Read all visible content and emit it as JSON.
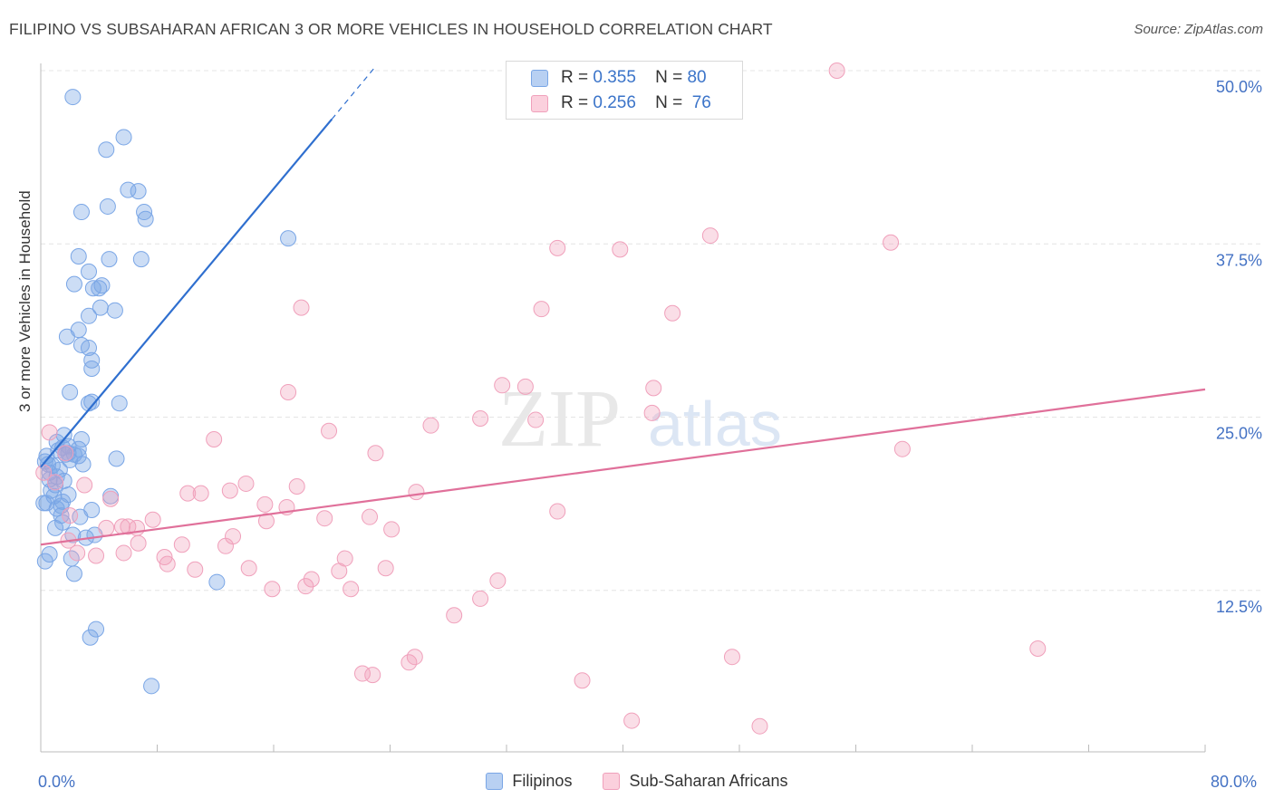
{
  "title": "FILIPINO VS SUBSAHARAN AFRICAN 3 OR MORE VEHICLES IN HOUSEHOLD CORRELATION CHART",
  "source": "Source: ZipAtlas.com",
  "watermark": {
    "zip": "ZIP",
    "atlas": "atlas"
  },
  "legend_box": {
    "rows": [
      {
        "r_label": "R =",
        "r_value": "0.355",
        "n_label": "N =",
        "n_value": "80"
      },
      {
        "r_label": "R =",
        "r_value": "0.256",
        "n_label": "N =",
        "n_value": "76"
      }
    ]
  },
  "chart_data": {
    "type": "scatter",
    "xlabel": "",
    "ylabel": "3 or more Vehicles in Household",
    "xlim": [
      0,
      80
    ],
    "ylim": [
      0,
      52
    ],
    "x_tick_labels": {
      "left": "0.0%",
      "right": "80.0%"
    },
    "y_ticks": [
      {
        "value": 12.5,
        "label": "12.5%"
      },
      {
        "value": 25.0,
        "label": "25.0%"
      },
      {
        "value": 37.5,
        "label": "37.5%"
      },
      {
        "value": 50.0,
        "label": "50.0%"
      }
    ],
    "grid": true,
    "legend_position": "bottom",
    "colors": {
      "filipinos": "#7aa6e6",
      "subsaharan": "#f0a0bb",
      "filipinos_line": "#2f6fcf",
      "subsaharan_line": "#e0709a"
    },
    "series": [
      {
        "name": "Filipinos",
        "r": 0.355,
        "n": 80,
        "trend": {
          "x0": 0.0,
          "y0": 21.4,
          "x1": 20.0,
          "y1": 46.5,
          "dash_to_x": 23.0,
          "dash_to_y": 50.3
        },
        "points": [
          [
            2.2,
            48.1
          ],
          [
            4.5,
            44.3
          ],
          [
            5.7,
            45.2
          ],
          [
            6.0,
            41.4
          ],
          [
            6.7,
            41.3
          ],
          [
            2.8,
            39.8
          ],
          [
            4.6,
            40.2
          ],
          [
            7.1,
            39.8
          ],
          [
            7.2,
            39.3
          ],
          [
            17.0,
            37.9
          ],
          [
            2.6,
            36.6
          ],
          [
            4.7,
            36.4
          ],
          [
            6.9,
            36.4
          ],
          [
            3.3,
            35.5
          ],
          [
            2.3,
            34.6
          ],
          [
            4.2,
            34.5
          ],
          [
            3.6,
            34.3
          ],
          [
            4.0,
            34.3
          ],
          [
            4.1,
            32.9
          ],
          [
            5.1,
            32.7
          ],
          [
            3.3,
            32.3
          ],
          [
            2.6,
            31.3
          ],
          [
            1.8,
            30.8
          ],
          [
            2.8,
            30.2
          ],
          [
            3.3,
            30.0
          ],
          [
            3.5,
            29.1
          ],
          [
            3.5,
            28.5
          ],
          [
            2.0,
            26.8
          ],
          [
            3.5,
            26.1
          ],
          [
            3.3,
            26.0
          ],
          [
            5.4,
            26.0
          ],
          [
            1.1,
            23.2
          ],
          [
            2.8,
            23.4
          ],
          [
            1.9,
            22.9
          ],
          [
            1.5,
            22.8
          ],
          [
            2.6,
            22.7
          ],
          [
            1.9,
            22.4
          ],
          [
            2.3,
            22.3
          ],
          [
            1.7,
            22.3
          ],
          [
            2.6,
            22.2
          ],
          [
            5.2,
            22.0
          ],
          [
            2.9,
            21.6
          ],
          [
            0.5,
            21.6
          ],
          [
            0.8,
            21.5
          ],
          [
            1.3,
            21.2
          ],
          [
            0.6,
            21.0
          ],
          [
            1.1,
            20.7
          ],
          [
            0.6,
            20.5
          ],
          [
            1.6,
            20.4
          ],
          [
            0.7,
            19.7
          ],
          [
            1.9,
            19.4
          ],
          [
            0.9,
            19.3
          ],
          [
            1.5,
            18.9
          ],
          [
            0.4,
            18.8
          ],
          [
            1.4,
            18.6
          ],
          [
            1.1,
            18.4
          ],
          [
            3.5,
            18.3
          ],
          [
            1.4,
            17.9
          ],
          [
            2.7,
            17.8
          ],
          [
            1.5,
            17.4
          ],
          [
            4.8,
            19.3
          ],
          [
            3.7,
            16.5
          ],
          [
            2.2,
            16.5
          ],
          [
            3.1,
            16.3
          ],
          [
            0.6,
            15.1
          ],
          [
            2.1,
            14.8
          ],
          [
            0.3,
            14.6
          ],
          [
            2.3,
            13.7
          ],
          [
            12.1,
            13.1
          ],
          [
            3.8,
            9.7
          ],
          [
            3.4,
            9.1
          ],
          [
            7.6,
            5.6
          ],
          [
            0.2,
            18.8
          ],
          [
            1.0,
            20.1
          ],
          [
            0.3,
            21.8
          ],
          [
            1.2,
            22.6
          ],
          [
            2.0,
            21.9
          ],
          [
            0.4,
            22.2
          ],
          [
            1.6,
            23.7
          ],
          [
            1.0,
            17.0
          ]
        ]
      },
      {
        "name": "Sub-Saharan Africans",
        "r": 0.256,
        "n": 76,
        "trend": {
          "x0": 0.0,
          "y0": 15.8,
          "x1": 80.0,
          "y1": 27.0
        },
        "points": [
          [
            54.7,
            50.0
          ],
          [
            46.0,
            38.1
          ],
          [
            58.4,
            37.6
          ],
          [
            35.5,
            37.2
          ],
          [
            39.8,
            37.1
          ],
          [
            17.9,
            32.9
          ],
          [
            34.4,
            32.8
          ],
          [
            43.4,
            32.5
          ],
          [
            17.0,
            26.8
          ],
          [
            31.7,
            27.3
          ],
          [
            33.3,
            27.2
          ],
          [
            42.1,
            27.1
          ],
          [
            30.2,
            24.9
          ],
          [
            34.0,
            24.8
          ],
          [
            42.0,
            25.3
          ],
          [
            26.8,
            24.4
          ],
          [
            19.8,
            24.0
          ],
          [
            11.9,
            23.4
          ],
          [
            59.2,
            22.7
          ],
          [
            23.0,
            22.4
          ],
          [
            1.7,
            22.4
          ],
          [
            14.1,
            20.2
          ],
          [
            17.6,
            20.0
          ],
          [
            13.0,
            19.7
          ],
          [
            10.1,
            19.5
          ],
          [
            11.0,
            19.5
          ],
          [
            25.8,
            19.6
          ],
          [
            4.8,
            19.1
          ],
          [
            15.4,
            18.7
          ],
          [
            16.9,
            18.5
          ],
          [
            22.6,
            17.8
          ],
          [
            19.5,
            17.7
          ],
          [
            35.5,
            18.2
          ],
          [
            7.7,
            17.6
          ],
          [
            15.5,
            17.5
          ],
          [
            6.0,
            17.1
          ],
          [
            4.5,
            17.0
          ],
          [
            5.6,
            17.1
          ],
          [
            24.1,
            16.9
          ],
          [
            13.2,
            16.4
          ],
          [
            1.9,
            16.1
          ],
          [
            6.7,
            15.9
          ],
          [
            9.7,
            15.8
          ],
          [
            12.7,
            15.7
          ],
          [
            5.7,
            15.2
          ],
          [
            3.8,
            15.0
          ],
          [
            8.5,
            14.9
          ],
          [
            20.9,
            14.8
          ],
          [
            8.7,
            14.4
          ],
          [
            10.6,
            14.0
          ],
          [
            14.3,
            14.1
          ],
          [
            20.5,
            13.9
          ],
          [
            23.7,
            14.1
          ],
          [
            18.6,
            13.3
          ],
          [
            18.2,
            12.8
          ],
          [
            31.4,
            13.2
          ],
          [
            15.9,
            12.6
          ],
          [
            21.3,
            12.6
          ],
          [
            30.2,
            11.9
          ],
          [
            28.4,
            10.7
          ],
          [
            6.6,
            17.0
          ],
          [
            2.0,
            17.9
          ],
          [
            2.5,
            15.2
          ],
          [
            1.0,
            20.3
          ],
          [
            0.2,
            21.0
          ],
          [
            25.7,
            7.7
          ],
          [
            25.3,
            7.3
          ],
          [
            22.1,
            6.5
          ],
          [
            22.8,
            6.4
          ],
          [
            37.2,
            6.0
          ],
          [
            47.5,
            7.7
          ],
          [
            68.5,
            8.3
          ],
          [
            40.6,
            3.1
          ],
          [
            49.4,
            2.7
          ],
          [
            0.6,
            23.9
          ],
          [
            3.0,
            20.1
          ]
        ]
      }
    ]
  }
}
